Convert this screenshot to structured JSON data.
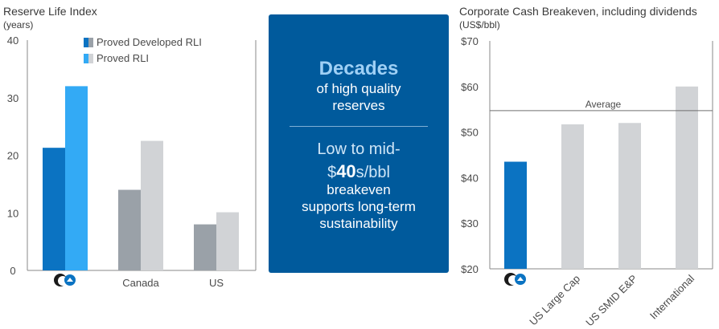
{
  "left_chart": {
    "title": "Reserve Life Index",
    "unit": "(years)",
    "legend": [
      {
        "label": "Proved Developed RLI"
      },
      {
        "label": "Proved RLI"
      }
    ]
  },
  "right_chart": {
    "title": "Corporate Cash Breakeven, including dividends",
    "unit": "(US$/bbl)",
    "average_label": "Average"
  },
  "center_panel": {
    "headline": "Decades",
    "sub_line1": "of high quality",
    "sub_line2": "reserves",
    "low_line1": "Low to mid-",
    "low_prefix": "$",
    "low_bold": "40",
    "low_suffix": "s/bbl",
    "body_line1": "breakeven",
    "body_line2": "supports long-term",
    "body_line3": "sustainability"
  },
  "colors": {
    "company_dark": "#0b73c2",
    "company_light": "#33aaf5",
    "peer_dark": "#9aa1a8",
    "peer_light": "#d1d3d6",
    "panel": "#005a9c",
    "axis": "#8a8a8a",
    "logo": "#1a1a1a"
  },
  "chart_data": [
    {
      "type": "bar",
      "title": "Reserve Life Index",
      "ylabel": "(years)",
      "categories": [
        "",
        "Canada",
        "US"
      ],
      "category_logo": [
        "company-logo",
        null,
        null
      ],
      "series": [
        {
          "name": "Proved Developed RLI",
          "values": [
            21.3,
            14.0,
            8.0
          ]
        },
        {
          "name": "Proved RLI",
          "values": [
            32.0,
            22.5,
            10.1
          ]
        }
      ],
      "ylim": [
        0,
        40
      ],
      "yticks": [
        0,
        10,
        20,
        30,
        40
      ],
      "ytick_labels": [
        "0",
        "10",
        "20",
        "30",
        "40"
      ],
      "legend": "top-center",
      "grid": false
    },
    {
      "type": "bar",
      "title": "Corporate Cash Breakeven, including dividends",
      "ylabel": "(US$/bbl)",
      "categories": [
        "",
        "US Large Cap",
        "US SMID E&P",
        "International"
      ],
      "category_logo": [
        "company-logo",
        null,
        null,
        null
      ],
      "values": [
        43.5,
        51.7,
        52.0,
        60.0
      ],
      "ylim": [
        20,
        70
      ],
      "yticks": [
        20,
        30,
        40,
        50,
        60,
        70
      ],
      "ytick_labels": [
        "$20",
        "$30",
        "$40",
        "$50",
        "$60",
        "$70"
      ],
      "reference_line": {
        "label": "Average",
        "value": 54.7
      },
      "grid": false
    }
  ]
}
